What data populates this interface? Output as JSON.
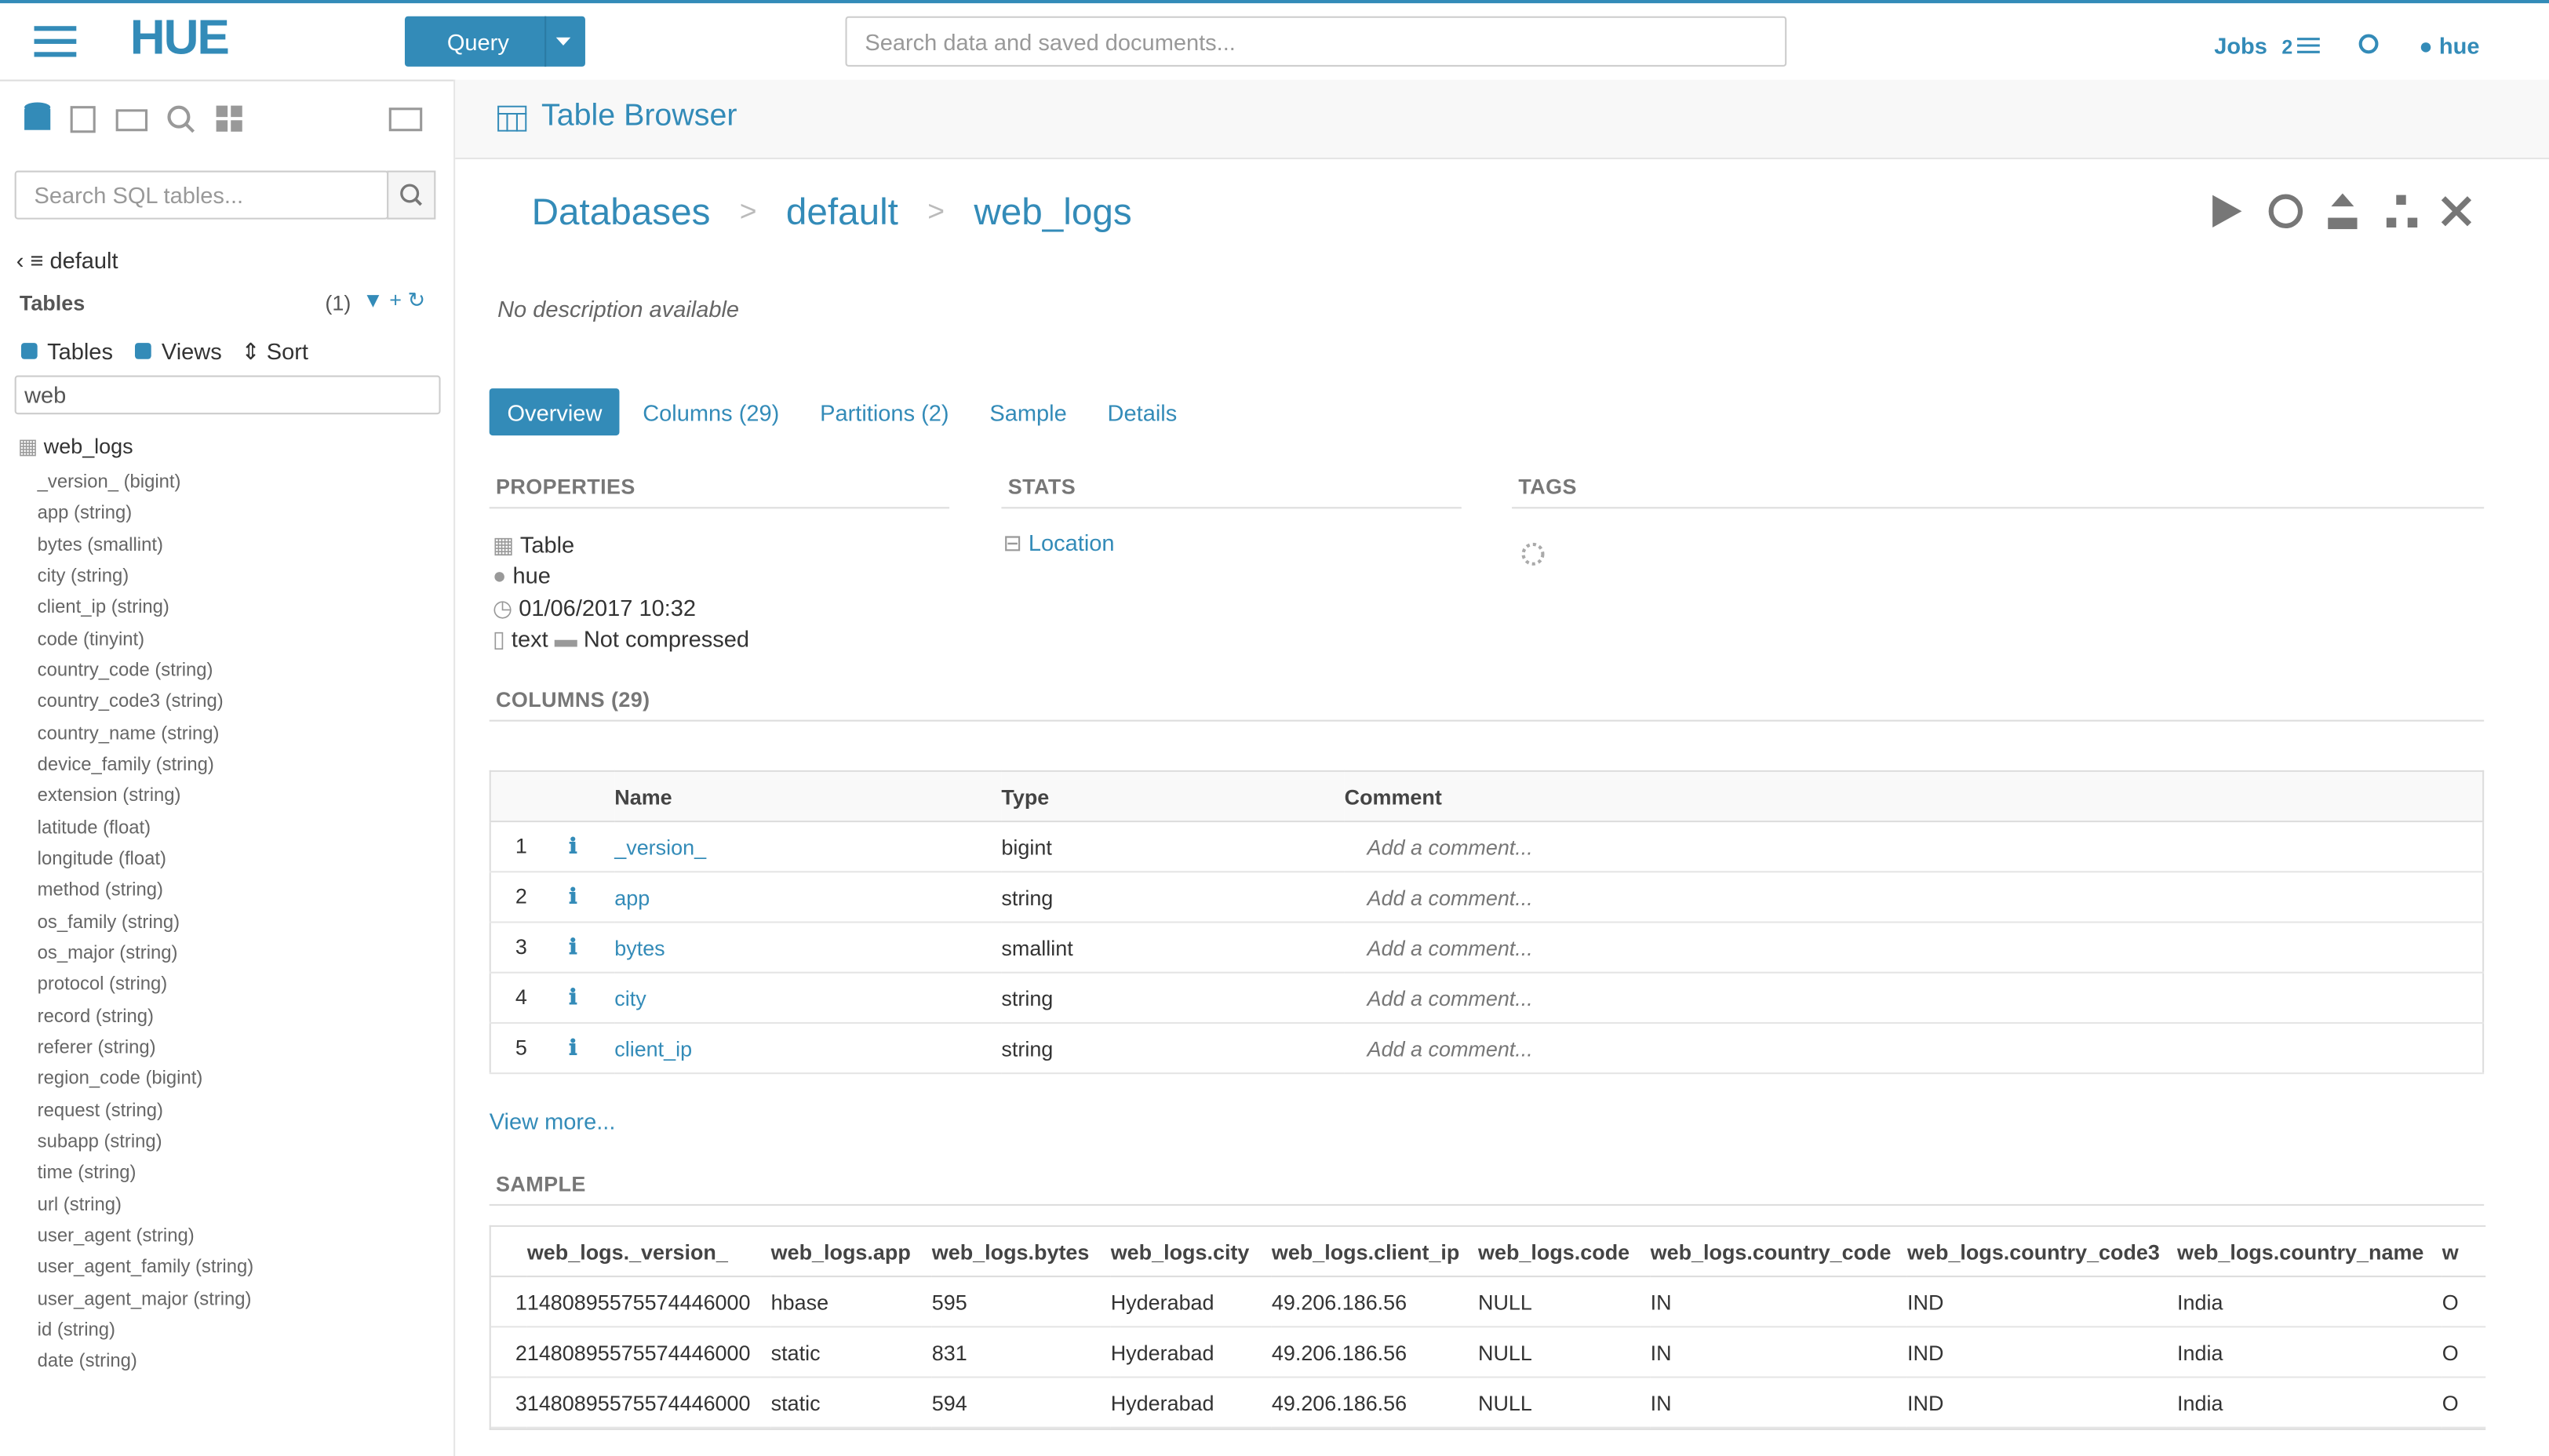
{
  "header": {
    "logo": "HUE",
    "query_button": "Query",
    "search_placeholder": "Search data and saved documents...",
    "jobs": "Jobs",
    "jobs_count": "2",
    "user": "hue"
  },
  "sidebar": {
    "search_placeholder": "Search SQL tables...",
    "database": "default",
    "tables_label": "Tables",
    "tables_count": "(1)",
    "filter_tables": "Tables",
    "filter_views": "Views",
    "sort": "Sort",
    "filter_value": "web",
    "table_name": "web_logs",
    "columns": [
      "_version_ (bigint)",
      "app (string)",
      "bytes (smallint)",
      "city (string)",
      "client_ip (string)",
      "code (tinyint)",
      "country_code (string)",
      "country_code3 (string)",
      "country_name (string)",
      "device_family (string)",
      "extension (string)",
      "latitude (float)",
      "longitude (float)",
      "method (string)",
      "os_family (string)",
      "os_major (string)",
      "protocol (string)",
      "record (string)",
      "referer (string)",
      "region_code (bigint)",
      "request (string)",
      "subapp (string)",
      "time (string)",
      "url (string)",
      "user_agent (string)",
      "user_agent_family (string)",
      "user_agent_major (string)",
      "id (string)",
      "date (string)"
    ]
  },
  "main": {
    "page_title": "Table Browser",
    "breadcrumb": [
      "Databases",
      "default",
      "web_logs"
    ],
    "separator": ">",
    "description": "No description available",
    "tabs": [
      "Overview",
      "Columns (29)",
      "Partitions (2)",
      "Sample",
      "Details"
    ],
    "properties": {
      "heading": "PROPERTIES",
      "type": "Table",
      "owner": "hue",
      "created": "01/06/2017 10:32",
      "format": "text",
      "compression": "Not compressed"
    },
    "stats": {
      "heading": "STATS",
      "location": "Location"
    },
    "tags": {
      "heading": "TAGS"
    },
    "columns_section": {
      "heading": "COLUMNS (29)",
      "headers": [
        "Name",
        "Type",
        "Comment"
      ],
      "comment_placeholder": "Add a comment...",
      "rows": [
        [
          1,
          "_version_",
          "bigint"
        ],
        [
          2,
          "app",
          "string"
        ],
        [
          3,
          "bytes",
          "smallint"
        ],
        [
          4,
          "city",
          "string"
        ],
        [
          5,
          "client_ip",
          "string"
        ]
      ],
      "view_more": "View more..."
    },
    "sample": {
      "heading": "SAMPLE",
      "headers": [
        "web_logs._version_",
        "web_logs.app",
        "web_logs.bytes",
        "web_logs.city",
        "web_logs.client_ip",
        "web_logs.code",
        "web_logs.country_code",
        "web_logs.country_code3",
        "web_logs.country_name",
        "w"
      ],
      "rows": [
        [
          1,
          "1480895575574446000",
          "hbase",
          "595",
          "Hyderabad",
          "49.206.186.56",
          "NULL",
          "IN",
          "IND",
          "India",
          "O"
        ],
        [
          2,
          "1480895575574446000",
          "static",
          "831",
          "Hyderabad",
          "49.206.186.56",
          "NULL",
          "IN",
          "IND",
          "India",
          "O"
        ],
        [
          3,
          "1480895575574446000",
          "static",
          "594",
          "Hyderabad",
          "49.206.186.56",
          "NULL",
          "IN",
          "IND",
          "India",
          "O"
        ]
      ]
    }
  }
}
